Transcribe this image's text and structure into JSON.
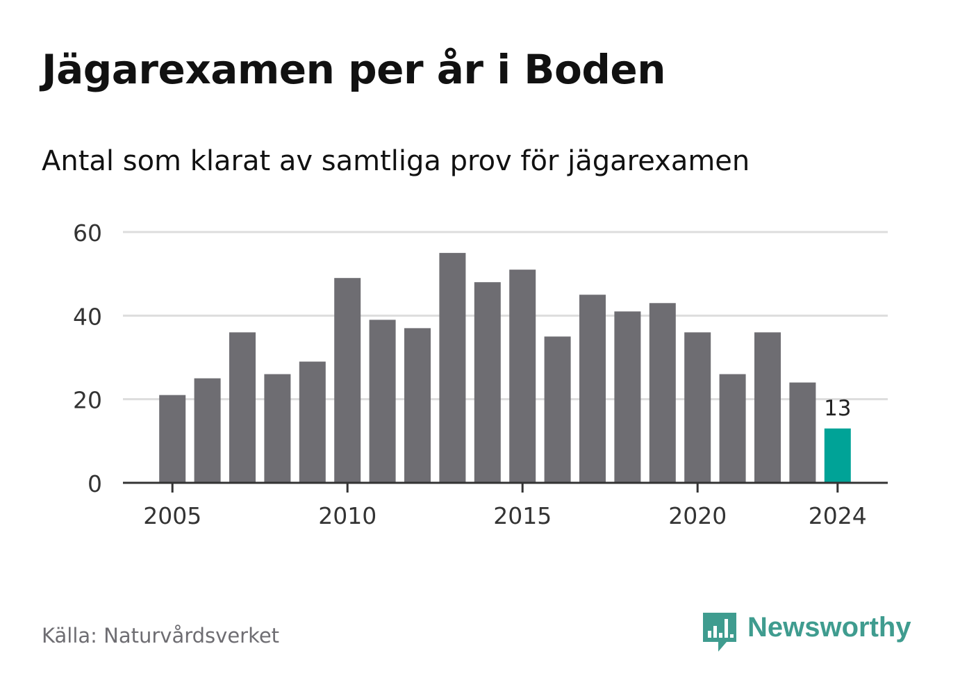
{
  "title": "Jägarexamen per år i Boden",
  "subtitle": "Antal som klarat av samtliga prov för jägarexamen",
  "source": "Källa: Naturvårdsverket",
  "brand": {
    "name": "Newsworthy",
    "icon": "newsworthy-logo-icon"
  },
  "colors": {
    "bar": "#6e6d72",
    "highlight": "#00a397",
    "grid": "#dddddd",
    "axis": "#333333",
    "brand": "#3f9c8f"
  },
  "chart_data": {
    "type": "bar",
    "categories": [
      "2005",
      "2006",
      "2007",
      "2008",
      "2009",
      "2010",
      "2011",
      "2012",
      "2013",
      "2014",
      "2015",
      "2016",
      "2017",
      "2018",
      "2019",
      "2020",
      "2021",
      "2022",
      "2023",
      "2024"
    ],
    "values": [
      21,
      25,
      36,
      26,
      29,
      49,
      39,
      37,
      55,
      48,
      51,
      35,
      45,
      41,
      43,
      36,
      26,
      36,
      24,
      13
    ],
    "highlight_index": 19,
    "highlight_label": "13",
    "x_tick_labels": [
      "2005",
      "2010",
      "2015",
      "2020",
      "2024"
    ],
    "y_ticks": [
      0,
      20,
      40,
      60
    ],
    "ylim": [
      0,
      60
    ],
    "grid": true,
    "xlabel": "",
    "ylabel": ""
  }
}
